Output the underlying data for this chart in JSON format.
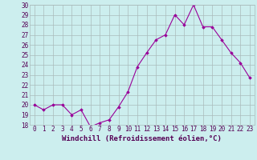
{
  "x": [
    0,
    1,
    2,
    3,
    4,
    5,
    6,
    7,
    8,
    9,
    10,
    11,
    12,
    13,
    14,
    15,
    16,
    17,
    18,
    19,
    20,
    21,
    22,
    23
  ],
  "y": [
    20.0,
    19.5,
    20.0,
    20.0,
    19.0,
    19.5,
    17.8,
    18.2,
    18.5,
    19.8,
    21.3,
    23.8,
    25.2,
    26.5,
    27.0,
    29.0,
    28.0,
    30.0,
    27.8,
    27.8,
    26.5,
    25.2,
    24.2,
    22.7
  ],
  "xlabel": "Windchill (Refroidissement éolien,°C)",
  "ylim": [
    18,
    30
  ],
  "yticks": [
    18,
    19,
    20,
    21,
    22,
    23,
    24,
    25,
    26,
    27,
    28,
    29,
    30
  ],
  "xticks": [
    0,
    1,
    2,
    3,
    4,
    5,
    6,
    7,
    8,
    9,
    10,
    11,
    12,
    13,
    14,
    15,
    16,
    17,
    18,
    19,
    20,
    21,
    22,
    23
  ],
  "line_color": "#990099",
  "marker": "D",
  "marker_size": 1.8,
  "bg_color": "#cceeee",
  "grid_color": "#aabbbb",
  "axis_label_color": "#550055",
  "tick_label_color": "#550055",
  "xlabel_fontsize": 6.5,
  "tick_fontsize": 5.5
}
